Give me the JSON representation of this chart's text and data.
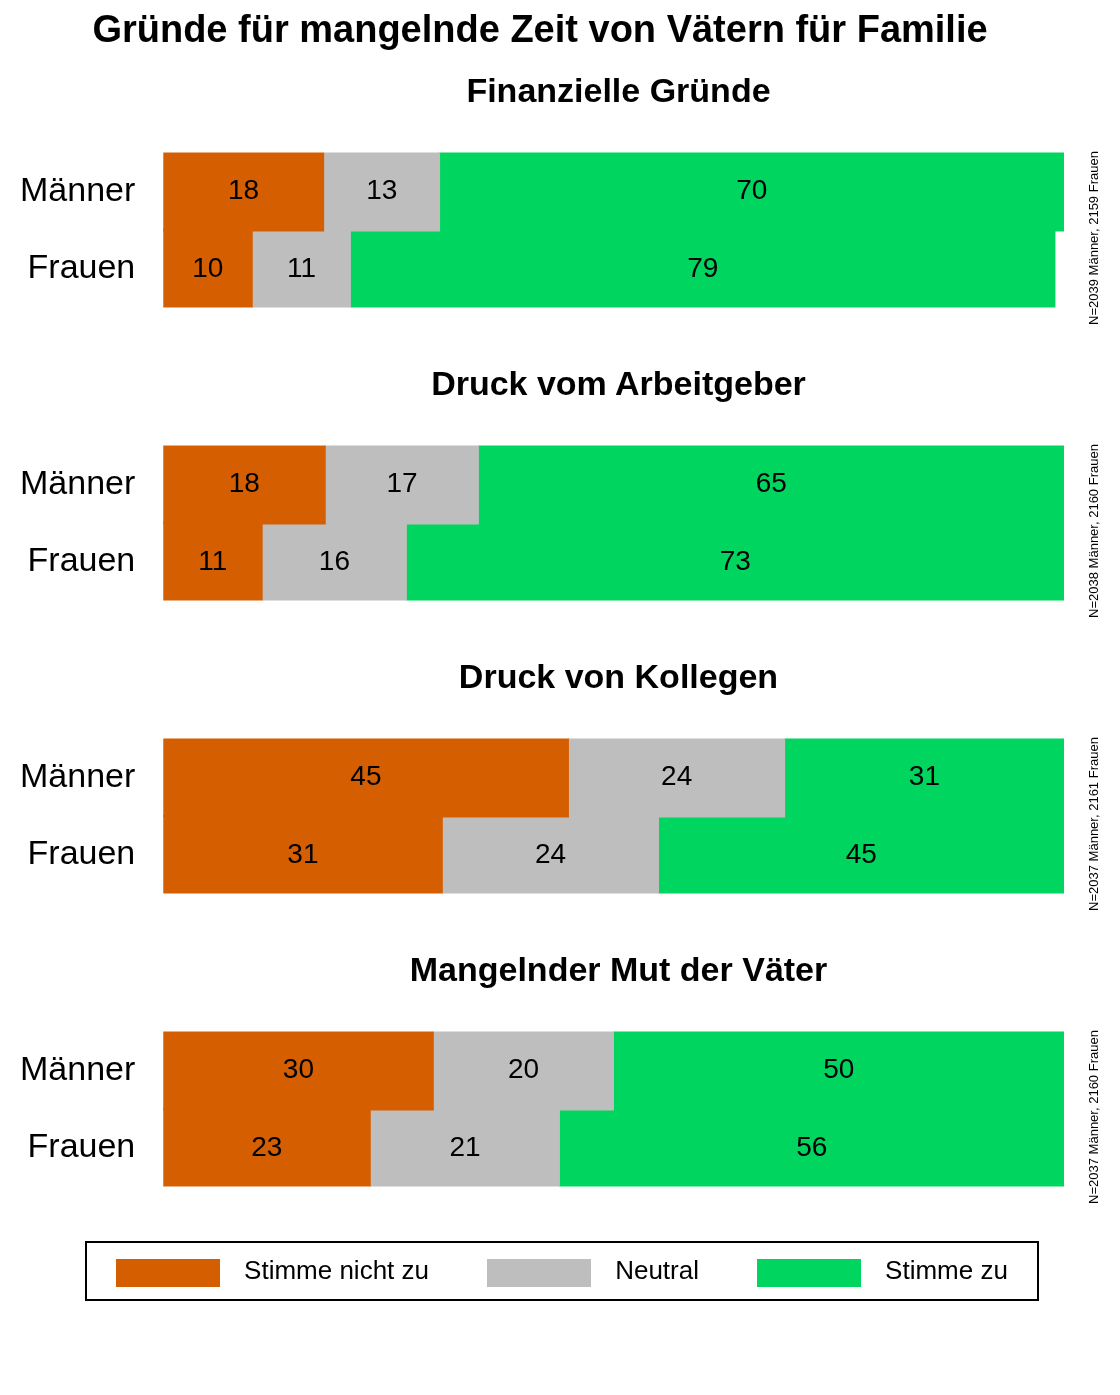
{
  "chart_data": [
    {
      "type": "bar",
      "orientation": "horizontal",
      "stacked": true,
      "data_labels": true,
      "title": "Gründe für mangelnde Zeit von Vätern für Familie",
      "subtitle": "Finanzielle Gründe",
      "categories": [
        "Männer",
        "Frauen"
      ],
      "series": [
        {
          "color": "#d55e00",
          "values": [
            18,
            10
          ]
        },
        {
          "color": "#bebebe",
          "values": [
            13,
            11
          ]
        },
        {
          "color": "#00d65f",
          "values": [
            70,
            79
          ]
        }
      ],
      "annotations": [
        "N=2039 Männer, 2159 Frauen"
      ]
    },
    {
      "type": "bar",
      "orientation": "horizontal",
      "stacked": true,
      "data_labels": true,
      "subtitle": "Druck vom Arbeitgeber",
      "categories": [
        "Männer",
        "Frauen"
      ],
      "series": [
        {
          "color": "#d55e00",
          "values": [
            18,
            11
          ]
        },
        {
          "color": "#bebebe",
          "values": [
            17,
            16
          ]
        },
        {
          "color": "#00d65f",
          "values": [
            65,
            73
          ]
        }
      ],
      "annotations": [
        "N=2038 Männer, 2160 Frauen"
      ]
    },
    {
      "type": "bar",
      "orientation": "horizontal",
      "stacked": true,
      "data_labels": true,
      "subtitle": "Druck von Kollegen",
      "categories": [
        "Männer",
        "Frauen"
      ],
      "series": [
        {
          "color": "#d55e00",
          "values": [
            45,
            31
          ]
        },
        {
          "color": "#bebebe",
          "values": [
            24,
            24
          ]
        },
        {
          "color": "#00d65f",
          "values": [
            31,
            45
          ]
        }
      ],
      "annotations": [
        "N=2037 Männer, 2161 Frauen"
      ]
    },
    {
      "type": "bar",
      "orientation": "horizontal",
      "stacked": true,
      "data_labels": true,
      "subtitle": "Mangelnder Mut der Väter",
      "categories": [
        "Männer",
        "Frauen"
      ],
      "series": [
        {
          "name": "Stimme nicht zu",
          "color": "#d55e00",
          "values": [
            30,
            23
          ]
        },
        {
          "name": "Neutral",
          "color": "#bebebe",
          "values": [
            20,
            21
          ]
        },
        {
          "name": "Stimme zu",
          "color": "#00d65f",
          "values": [
            50,
            56
          ]
        }
      ],
      "annotations": [
        "N=2037 Männer, 2160 Frauen"
      ],
      "legend": "bottom"
    }
  ]
}
